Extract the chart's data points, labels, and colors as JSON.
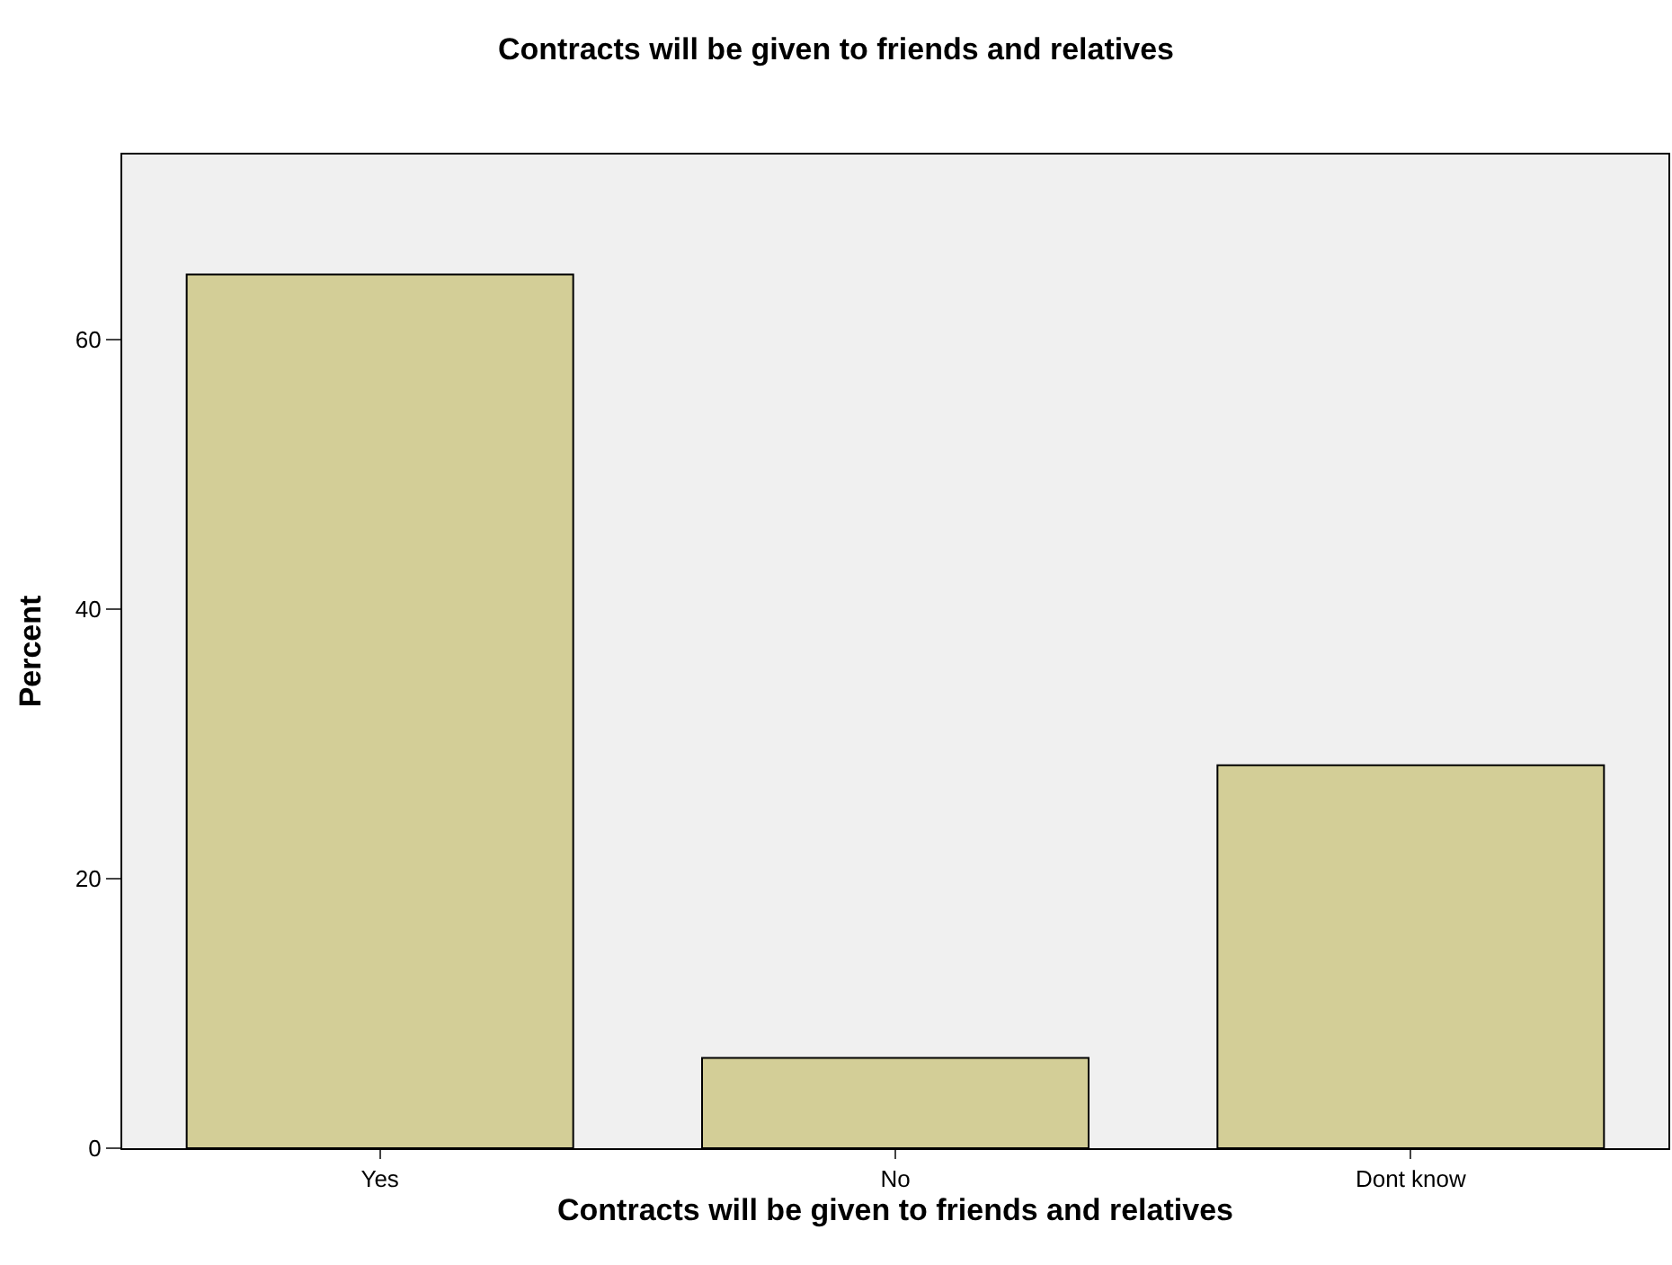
{
  "chart_data": {
    "type": "bar",
    "title": "Contracts will be given to friends and relatives",
    "xlabel": "Contracts will be given to friends and relatives",
    "ylabel": "Percent",
    "categories": [
      "Yes",
      "No",
      "Dont know"
    ],
    "values": [
      64.8,
      6.7,
      28.4
    ],
    "color": "#d3ce97",
    "ylim": [
      0,
      73.7
    ],
    "yticks": [
      0,
      20,
      40,
      60
    ]
  }
}
